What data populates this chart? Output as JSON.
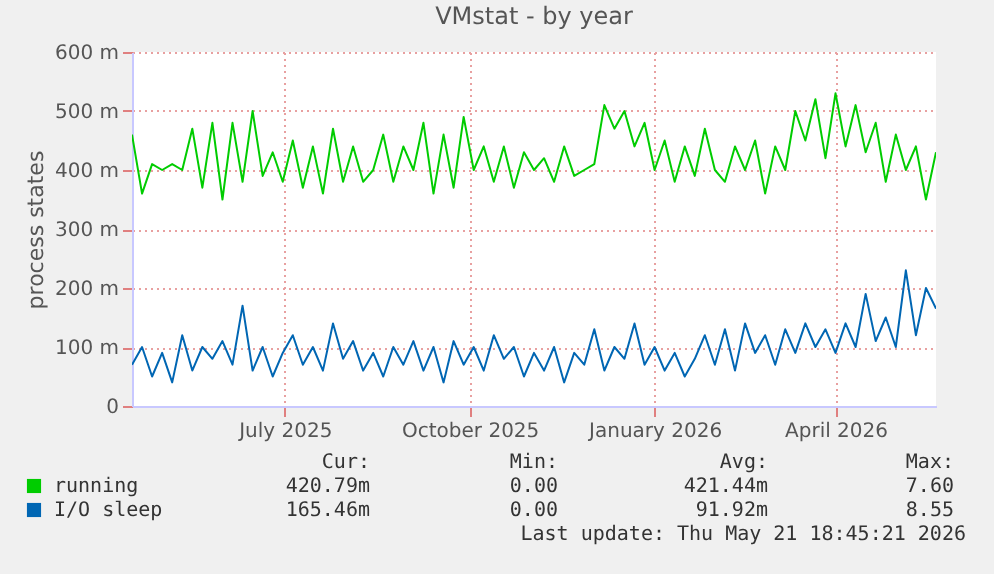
{
  "chart_data": {
    "type": "line",
    "title": "VMstat - by year",
    "ylabel": "process states",
    "x": [
      "2025-04-16",
      "2025-04-21",
      "2025-04-26",
      "2025-05-01",
      "2025-05-06",
      "2025-05-11",
      "2025-05-16",
      "2025-05-21",
      "2025-05-26",
      "2025-05-31",
      "2025-06-05",
      "2025-06-10",
      "2025-06-15",
      "2025-06-20",
      "2025-06-25",
      "2025-06-30",
      "2025-07-05",
      "2025-07-10",
      "2025-07-15",
      "2025-07-20",
      "2025-07-25",
      "2025-07-30",
      "2025-08-04",
      "2025-08-09",
      "2025-08-14",
      "2025-08-19",
      "2025-08-24",
      "2025-08-29",
      "2025-09-03",
      "2025-09-08",
      "2025-09-13",
      "2025-09-18",
      "2025-09-23",
      "2025-09-28",
      "2025-10-03",
      "2025-10-08",
      "2025-10-13",
      "2025-10-18",
      "2025-10-23",
      "2025-10-28",
      "2025-11-02",
      "2025-11-07",
      "2025-11-12",
      "2025-11-17",
      "2025-11-22",
      "2025-11-27",
      "2025-12-02",
      "2025-12-07",
      "2025-12-12",
      "2025-12-17",
      "2025-12-22",
      "2025-12-27",
      "2026-01-01",
      "2026-01-06",
      "2026-01-11",
      "2026-01-16",
      "2026-01-21",
      "2026-01-26",
      "2026-01-31",
      "2026-02-05",
      "2026-02-10",
      "2026-02-15",
      "2026-02-20",
      "2026-02-25",
      "2026-03-02",
      "2026-03-07",
      "2026-03-12",
      "2026-03-17",
      "2026-03-22",
      "2026-03-27",
      "2026-04-01",
      "2026-04-06",
      "2026-04-11",
      "2026-04-16",
      "2026-04-21",
      "2026-04-26",
      "2026-05-01",
      "2026-05-06",
      "2026-05-11",
      "2026-05-16",
      "2026-05-21"
    ],
    "series": [
      {
        "name": "running",
        "color": "#00cc00",
        "values": [
          460,
          360,
          410,
          400,
          410,
          400,
          470,
          370,
          480,
          350,
          480,
          380,
          500,
          390,
          430,
          380,
          450,
          370,
          440,
          360,
          470,
          380,
          440,
          380,
          400,
          460,
          380,
          440,
          400,
          480,
          360,
          460,
          370,
          490,
          400,
          440,
          380,
          440,
          370,
          430,
          400,
          420,
          380,
          440,
          390,
          400,
          410,
          510,
          470,
          500,
          440,
          480,
          400,
          450,
          380,
          440,
          390,
          470,
          400,
          380,
          440,
          400,
          450,
          360,
          440,
          400,
          500,
          450,
          520,
          420,
          530,
          440,
          510,
          430,
          480,
          380,
          460,
          400,
          440,
          350,
          430
        ]
      },
      {
        "name": "I/O sleep",
        "color": "#0066b3",
        "values": [
          70,
          100,
          50,
          90,
          40,
          120,
          60,
          100,
          80,
          110,
          70,
          170,
          60,
          100,
          50,
          90,
          120,
          70,
          100,
          60,
          140,
          80,
          110,
          60,
          90,
          50,
          100,
          70,
          110,
          60,
          100,
          40,
          110,
          70,
          100,
          60,
          120,
          80,
          100,
          50,
          90,
          60,
          100,
          40,
          90,
          70,
          130,
          60,
          100,
          80,
          140,
          70,
          100,
          60,
          90,
          50,
          80,
          120,
          70,
          130,
          60,
          140,
          90,
          120,
          70,
          130,
          90,
          140,
          100,
          130,
          90,
          140,
          100,
          190,
          110,
          150,
          100,
          230,
          120,
          200,
          165
        ]
      }
    ],
    "xlim": [
      "2025-04-16",
      "2026-05-21"
    ],
    "xticks": [
      {
        "value": "2025-07-01",
        "label": "July 2025"
      },
      {
        "value": "2025-10-01",
        "label": "October 2025"
      },
      {
        "value": "2026-01-01",
        "label": "January 2026"
      },
      {
        "value": "2026-04-01",
        "label": "April 2026"
      }
    ],
    "ylim": [
      0,
      600
    ],
    "yticks": [
      0,
      {
        "value": 100,
        "label": "100 m"
      },
      {
        "value": 200,
        "label": "200 m"
      },
      {
        "value": 300,
        "label": "300 m"
      },
      {
        "value": 400,
        "label": "400 m"
      },
      {
        "value": 500,
        "label": "500 m"
      },
      {
        "value": 600,
        "label": "600 m"
      }
    ],
    "grid": true,
    "legend": "bottom",
    "line_style": "solid",
    "annotations": [
      "Cur:",
      "Min:",
      "Avg:",
      "Max:",
      "420.79m",
      "0.00",
      "421.44m",
      "7.60",
      "165.46m",
      "0.00",
      "91.92m",
      "8.55",
      "Last update: Thu May 21 18:45:21 2026"
    ]
  }
}
